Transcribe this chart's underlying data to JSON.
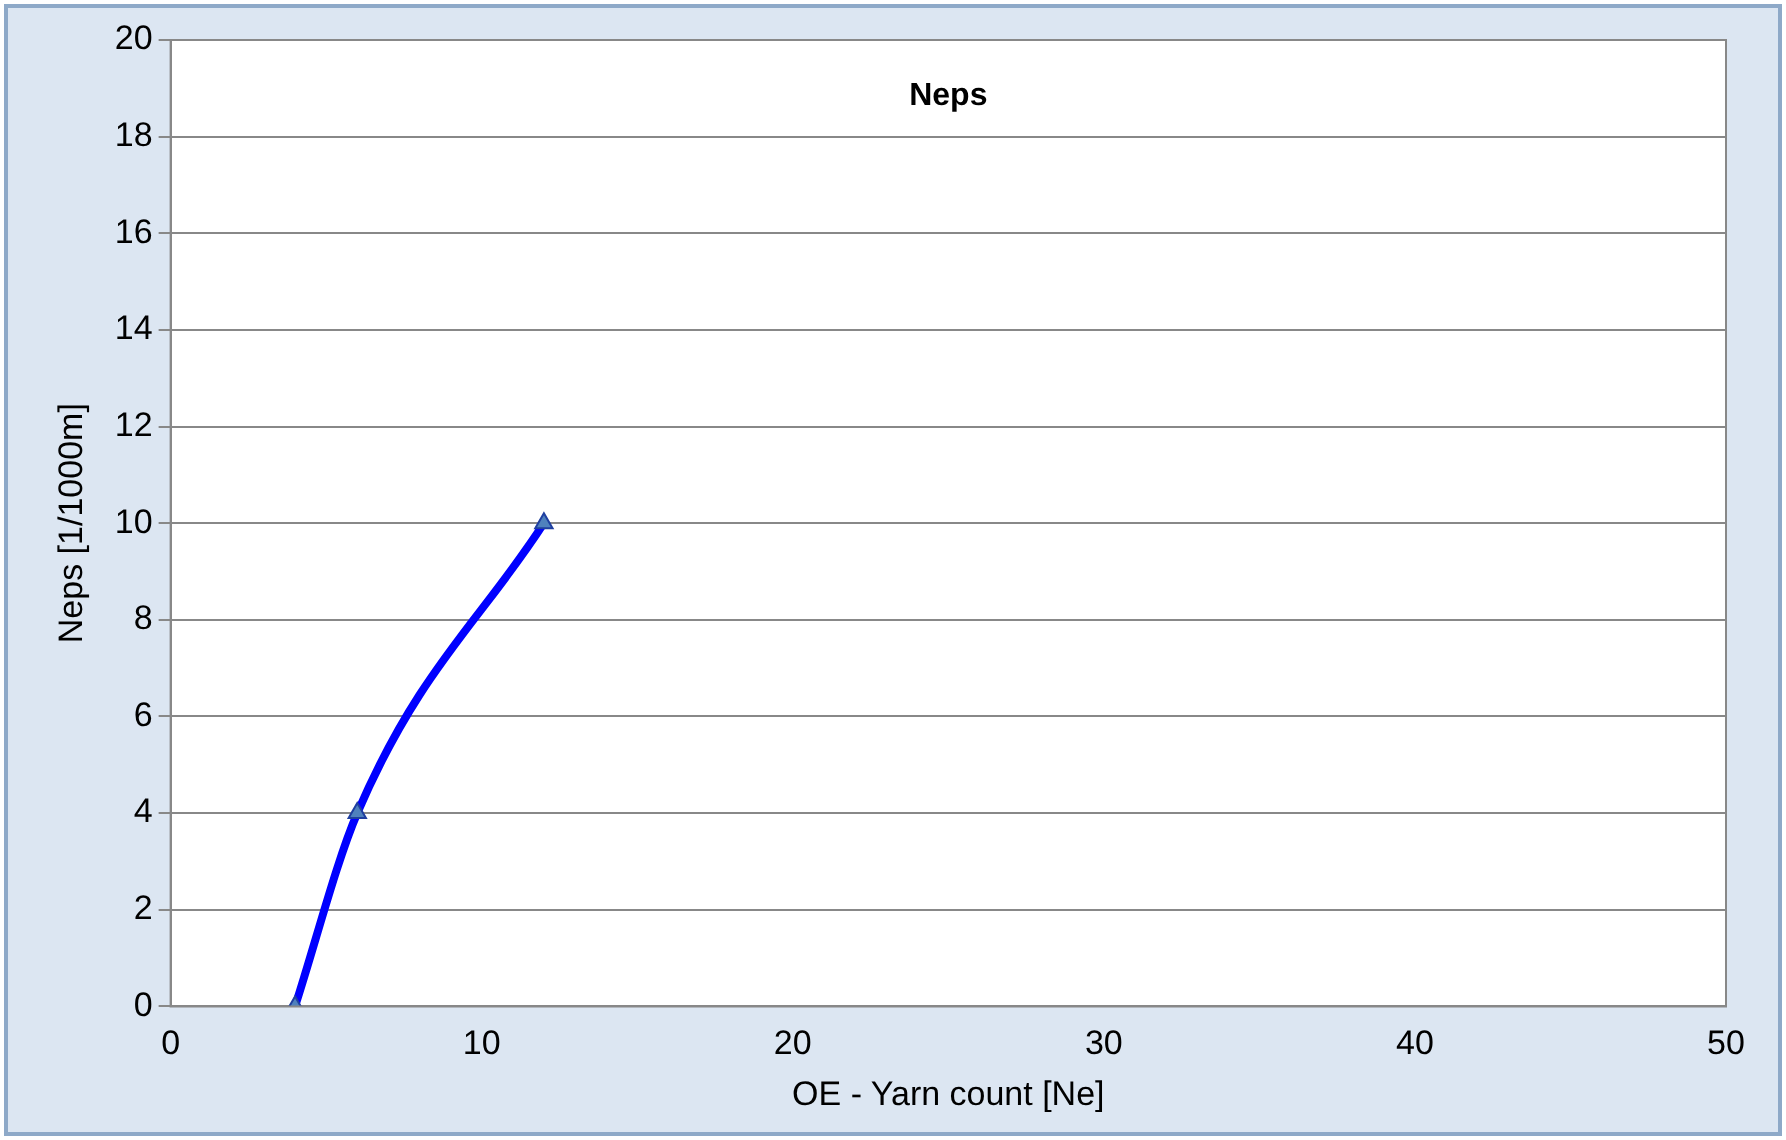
{
  "chart_data": {
    "type": "line",
    "title": "Neps",
    "xlabel": "OE - Yarn count [Ne]",
    "ylabel": "Neps [1/1000m]",
    "x": [
      4,
      6,
      12
    ],
    "series": [
      {
        "color": "#0000ff",
        "values": [
          0,
          4,
          10
        ]
      }
    ],
    "xlim": [
      0,
      50
    ],
    "xticks": [
      0,
      10,
      20,
      30,
      40,
      50
    ],
    "ylim": [
      0,
      20
    ],
    "yticks": [
      0,
      2,
      4,
      6,
      8,
      10,
      12,
      14,
      16,
      18,
      20
    ],
    "grid": "y",
    "marker": "triangle",
    "line_style": "solid"
  }
}
